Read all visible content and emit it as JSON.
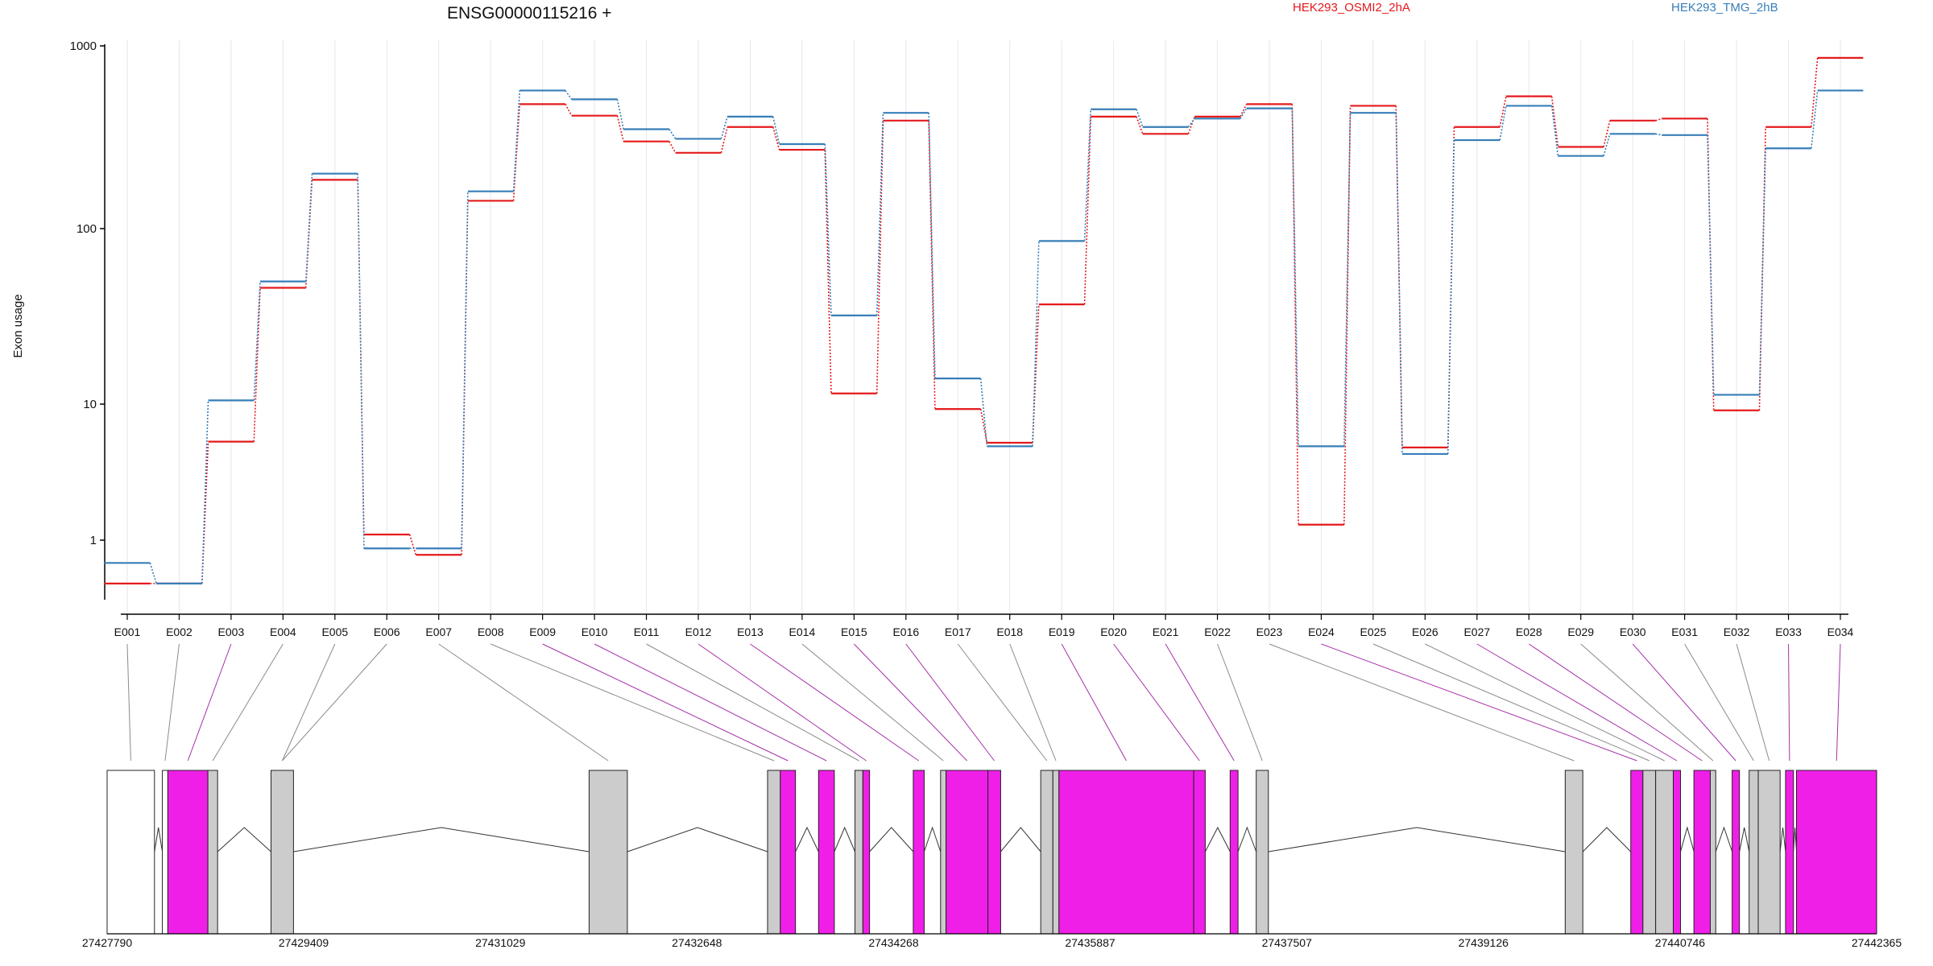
{
  "title": "ENSG00000115216 +",
  "chart_data": {
    "type": "line",
    "title": "ENSG00000115216 +",
    "ylabel": "Exon usage",
    "xlabel": "",
    "y_scale": "log",
    "ylim": [
      0.5,
      1000
    ],
    "yticks": [
      1,
      10,
      100,
      1000
    ],
    "grid": "vertical",
    "legend_placement": "top-right",
    "categories": [
      "E001",
      "E002",
      "E003",
      "E004",
      "E005",
      "E006",
      "E007",
      "E008",
      "E009",
      "E010",
      "E011",
      "E012",
      "E013",
      "E014",
      "E015",
      "E016",
      "E017",
      "E018",
      "E019",
      "E020",
      "E021",
      "E022",
      "E023",
      "E024",
      "E025",
      "E026",
      "E027",
      "E028",
      "E029",
      "E030",
      "E031",
      "E032",
      "E033",
      "E034"
    ],
    "series": [
      {
        "name": "HEK293_OSMI2_2hA",
        "color": "#e41a1c",
        "values": [
          0.48,
          0.48,
          5.3,
          46,
          185,
          1.1,
          0.78,
          142,
          480,
          415,
          300,
          260,
          360,
          270,
          11.5,
          390,
          9.2,
          5.2,
          37,
          410,
          330,
          410,
          480,
          1.3,
          470,
          4.8,
          360,
          530,
          280,
          390,
          400,
          9,
          360,
          860
        ]
      },
      {
        "name": "HEK293_TMG_2hB",
        "color": "#377eb8",
        "values": [
          0.68,
          0.48,
          10.5,
          50,
          200,
          0.87,
          0.87,
          160,
          570,
          510,
          350,
          310,
          410,
          290,
          32,
          430,
          14,
          4.9,
          85,
          450,
          360,
          400,
          455,
          4.9,
          430,
          4.3,
          305,
          470,
          250,
          330,
          325,
          11.3,
          275,
          570
        ]
      }
    ],
    "gene_model": {
      "coordinate_ticks": [
        "27427790",
        "27429409",
        "27431029",
        "27432648",
        "27434268",
        "27435887",
        "27437507",
        "27439126",
        "27440746",
        "27442365"
      ],
      "coordinate_range": [
        27427790,
        27442365
      ],
      "significant_color": "#f01fe8",
      "normal_color": "#cccccc",
      "exons": [
        {
          "id": "E001",
          "start": 27427790,
          "end": 27428180,
          "style": "utr",
          "sig": false
        },
        {
          "id": "E002",
          "start": 27428245,
          "end": 27428290,
          "style": "utr",
          "sig": false
        },
        {
          "id": "E003",
          "start": 27428290,
          "end": 27428620,
          "style": "exon",
          "sig": true
        },
        {
          "id": "E004",
          "start": 27428620,
          "end": 27428700,
          "style": "exon",
          "sig": false
        },
        {
          "id": "E005",
          "start": 27429140,
          "end": 27429325,
          "style": "exon",
          "sig": false
        },
        {
          "id": "E006",
          "start": 27429140,
          "end": 27429325,
          "style": "exon",
          "sig": false
        },
        {
          "id": "E007",
          "start": 27431760,
          "end": 27432075,
          "style": "exon",
          "sig": false
        },
        {
          "id": "E008",
          "start": 27433230,
          "end": 27433335,
          "style": "exon",
          "sig": false
        },
        {
          "id": "E009",
          "start": 27433335,
          "end": 27433460,
          "style": "exon",
          "sig": true
        },
        {
          "id": "E010",
          "start": 27433650,
          "end": 27433780,
          "style": "exon",
          "sig": true
        },
        {
          "id": "E011",
          "start": 27433950,
          "end": 27434015,
          "style": "exon",
          "sig": false
        },
        {
          "id": "E012",
          "start": 27434015,
          "end": 27434070,
          "style": "exon",
          "sig": true
        },
        {
          "id": "E013",
          "start": 27434430,
          "end": 27434520,
          "style": "exon",
          "sig": true
        },
        {
          "id": "E014",
          "start": 27434655,
          "end": 27434700,
          "style": "exon",
          "sig": false
        },
        {
          "id": "E015",
          "start": 27434700,
          "end": 27435045,
          "style": "exon",
          "sig": true
        },
        {
          "id": "E016",
          "start": 27435045,
          "end": 27435150,
          "style": "exon",
          "sig": true
        },
        {
          "id": "E017",
          "start": 27435480,
          "end": 27435580,
          "style": "exon",
          "sig": false
        },
        {
          "id": "E018",
          "start": 27435580,
          "end": 27435630,
          "style": "exon",
          "sig": false
        },
        {
          "id": "E019",
          "start": 27435630,
          "end": 27436740,
          "style": "exon",
          "sig": true
        },
        {
          "id": "E020",
          "start": 27436740,
          "end": 27436835,
          "style": "exon",
          "sig": true
        },
        {
          "id": "E021",
          "start": 27437040,
          "end": 27437105,
          "style": "exon",
          "sig": true
        },
        {
          "id": "E022",
          "start": 27437255,
          "end": 27437355,
          "style": "exon",
          "sig": false
        },
        {
          "id": "E023",
          "start": 27439800,
          "end": 27439945,
          "style": "exon",
          "sig": false
        },
        {
          "id": "E024",
          "start": 27440340,
          "end": 27440440,
          "style": "exon",
          "sig": true
        },
        {
          "id": "E025",
          "start": 27440440,
          "end": 27440545,
          "style": "exon",
          "sig": false
        },
        {
          "id": "E026",
          "start": 27440545,
          "end": 27440690,
          "style": "exon",
          "sig": false
        },
        {
          "id": "E027",
          "start": 27440690,
          "end": 27440750,
          "style": "exon",
          "sig": true
        },
        {
          "id": "E028",
          "start": 27440860,
          "end": 27440995,
          "style": "exon",
          "sig": true
        },
        {
          "id": "E029",
          "start": 27440995,
          "end": 27441040,
          "style": "exon",
          "sig": false
        },
        {
          "id": "E030",
          "start": 27441175,
          "end": 27441235,
          "style": "exon",
          "sig": true
        },
        {
          "id": "E031",
          "start": 27441315,
          "end": 27441390,
          "style": "exon",
          "sig": false
        },
        {
          "id": "E032",
          "start": 27441390,
          "end": 27441570,
          "style": "exon",
          "sig": false
        },
        {
          "id": "E033",
          "start": 27441615,
          "end": 27441680,
          "style": "exon",
          "sig": true
        },
        {
          "id": "E034",
          "start": 27441705,
          "end": 27442365,
          "style": "exon",
          "sig": true
        }
      ]
    }
  }
}
